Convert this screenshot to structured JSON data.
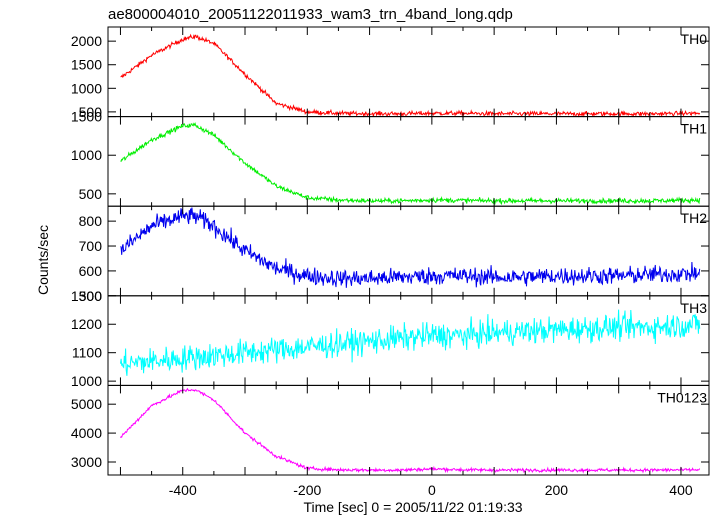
{
  "title": "ae800004010_20051122011933_wam3_trn_4band_long.qdp",
  "ylabel": "Counts/sec",
  "xlabel": "Time [sec] 0 = 2005/11/22 01:19:33",
  "chart_data": {
    "type": "line",
    "title": "ae800004010_20051122011933_wam3_trn_4band_long.qdp",
    "xlabel": "Time [sec] 0 = 2005/11/22 01:19:33",
    "ylabel": "Counts/sec",
    "xlim": [
      -520,
      445
    ],
    "x_ticks": [
      -400,
      -200,
      0,
      200,
      400
    ],
    "x": [
      -500,
      -450,
      -400,
      -380,
      -350,
      -300,
      -250,
      -200,
      -150,
      -100,
      -50,
      0,
      50,
      100,
      150,
      200,
      250,
      300,
      350,
      430
    ],
    "panels": [
      {
        "name": "TH0",
        "color": "#ff0000",
        "ylim": [
          400,
          2300
        ],
        "yticks": [
          500,
          1000,
          1500,
          2000
        ],
        "noise": 45,
        "values": [
          1220,
          1700,
          2040,
          2100,
          1950,
          1300,
          680,
          500,
          470,
          460,
          460,
          470,
          470,
          460,
          460,
          460,
          460,
          460,
          460,
          470
        ]
      },
      {
        "name": "TH1",
        "color": "#00ee00",
        "ylim": [
          340,
          1500
        ],
        "yticks": [
          500,
          1000,
          1500
        ],
        "noise": 30,
        "values": [
          920,
          1200,
          1380,
          1390,
          1260,
          900,
          600,
          450,
          420,
          410,
          410,
          420,
          415,
          410,
          410,
          410,
          410,
          410,
          410,
          420
        ]
      },
      {
        "name": "TH2",
        "color": "#0000ee",
        "ylim": [
          500,
          860
        ],
        "yticks": [
          500,
          600,
          700,
          800
        ],
        "noise": 35,
        "values": [
          680,
          780,
          820,
          820,
          780,
          680,
          610,
          580,
          570,
          570,
          575,
          580,
          580,
          575,
          575,
          580,
          580,
          580,
          585,
          590
        ]
      },
      {
        "name": "TH3",
        "color": "#00ffff",
        "ylim": [
          985,
          1300
        ],
        "yticks": [
          1000,
          1100,
          1200,
          1300
        ],
        "noise": 45,
        "values": [
          1060,
          1070,
          1080,
          1085,
          1090,
          1100,
          1110,
          1120,
          1130,
          1140,
          1150,
          1160,
          1160,
          1170,
          1175,
          1180,
          1185,
          1190,
          1190,
          1200
        ]
      },
      {
        "name": "TH0123",
        "color": "#ff00ff",
        "ylim": [
          2550,
          5650
        ],
        "yticks": [
          3000,
          4000,
          5000
        ],
        "noise": 55,
        "values": [
          3850,
          4950,
          5480,
          5500,
          5150,
          4000,
          3200,
          2780,
          2730,
          2720,
          2720,
          2760,
          2730,
          2720,
          2720,
          2720,
          2720,
          2720,
          2720,
          2730
        ]
      }
    ]
  }
}
